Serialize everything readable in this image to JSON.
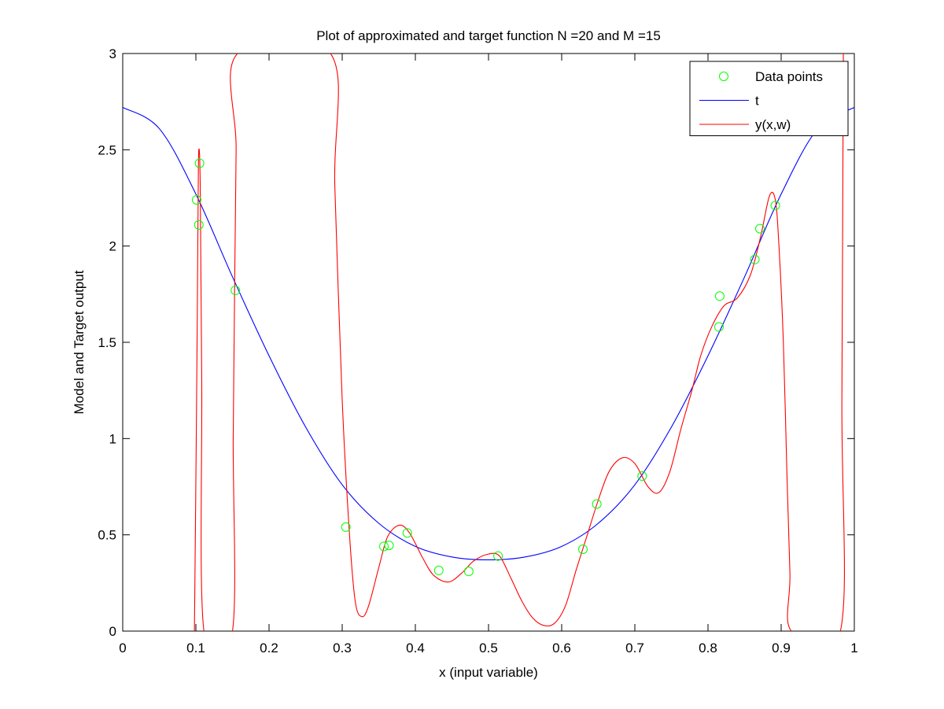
{
  "chart_data": {
    "type": "line",
    "title": "Plot of approximated and target function N =20 and M =15",
    "xlabel": "x (input variable)",
    "ylabel": "Model and Target output",
    "xlim": [
      0,
      1
    ],
    "ylim": [
      0,
      3
    ],
    "xticks": [
      0,
      0.1,
      0.2,
      0.3,
      0.4,
      0.5,
      0.6,
      0.7,
      0.8,
      0.9,
      1
    ],
    "xtick_labels": [
      "0",
      "0.1",
      "0.2",
      "0.3",
      "0.4",
      "0.5",
      "0.6",
      "0.7",
      "0.8",
      "0.9",
      "1"
    ],
    "yticks": [
      0,
      0.5,
      1,
      1.5,
      2,
      2.5,
      3
    ],
    "ytick_labels": [
      "0",
      "0.5",
      "1",
      "1.5",
      "2",
      "2.5",
      "3"
    ],
    "grid": false,
    "legend_position": "top-right",
    "series": [
      {
        "name": "Data points",
        "kind": "markers",
        "color": "#00ff00",
        "marker": "circle",
        "points": [
          [
            0.101,
            2.24
          ],
          [
            0.104,
            2.11
          ],
          [
            0.105,
            2.43
          ],
          [
            0.154,
            1.77
          ],
          [
            0.305,
            0.54
          ],
          [
            0.357,
            0.44
          ],
          [
            0.364,
            0.445
          ],
          [
            0.389,
            0.51
          ],
          [
            0.432,
            0.315
          ],
          [
            0.473,
            0.31
          ],
          [
            0.513,
            0.39
          ],
          [
            0.629,
            0.425
          ],
          [
            0.648,
            0.66
          ],
          [
            0.71,
            0.805
          ],
          [
            0.815,
            1.58
          ],
          [
            0.816,
            1.74
          ],
          [
            0.864,
            1.93
          ],
          [
            0.871,
            2.09
          ],
          [
            0.892,
            2.21
          ]
        ]
      },
      {
        "name": "t",
        "kind": "line",
        "color": "#0000ff",
        "points": [
          [
            0.0,
            2.72
          ],
          [
            0.05,
            2.61
          ],
          [
            0.1,
            2.27
          ],
          [
            0.15,
            1.84
          ],
          [
            0.2,
            1.43
          ],
          [
            0.25,
            1.06
          ],
          [
            0.3,
            0.76
          ],
          [
            0.35,
            0.56
          ],
          [
            0.4,
            0.44
          ],
          [
            0.45,
            0.385
          ],
          [
            0.5,
            0.37
          ],
          [
            0.55,
            0.385
          ],
          [
            0.6,
            0.44
          ],
          [
            0.65,
            0.56
          ],
          [
            0.7,
            0.76
          ],
          [
            0.75,
            1.06
          ],
          [
            0.8,
            1.43
          ],
          [
            0.85,
            1.84
          ],
          [
            0.9,
            2.27
          ],
          [
            0.95,
            2.61
          ],
          [
            1.0,
            2.72
          ]
        ]
      },
      {
        "name": "y(x,w)",
        "kind": "line",
        "color": "#ff0000",
        "points": [
          [
            0.098,
            0.0
          ],
          [
            0.101,
            1.2
          ],
          [
            0.103,
            2.2
          ],
          [
            0.104,
            2.5
          ],
          [
            0.106,
            2.3
          ],
          [
            0.108,
            1.3
          ],
          [
            0.111,
            0.0
          ],
          [
            0.15,
            0.0
          ],
          [
            0.151,
            1.0
          ],
          [
            0.153,
            1.8
          ],
          [
            0.155,
            2.5
          ],
          [
            0.157,
            3.0
          ],
          [
            0.284,
            3.0
          ],
          [
            0.29,
            2.3
          ],
          [
            0.3,
            1.2
          ],
          [
            0.31,
            0.5
          ],
          [
            0.318,
            0.15
          ],
          [
            0.327,
            0.075
          ],
          [
            0.336,
            0.13
          ],
          [
            0.35,
            0.33
          ],
          [
            0.362,
            0.49
          ],
          [
            0.378,
            0.55
          ],
          [
            0.392,
            0.51
          ],
          [
            0.41,
            0.38
          ],
          [
            0.425,
            0.29
          ],
          [
            0.445,
            0.255
          ],
          [
            0.463,
            0.3
          ],
          [
            0.48,
            0.365
          ],
          [
            0.5,
            0.4
          ],
          [
            0.515,
            0.39
          ],
          [
            0.53,
            0.28
          ],
          [
            0.545,
            0.16
          ],
          [
            0.56,
            0.07
          ],
          [
            0.575,
            0.03
          ],
          [
            0.59,
            0.04
          ],
          [
            0.605,
            0.13
          ],
          [
            0.62,
            0.32
          ],
          [
            0.635,
            0.5
          ],
          [
            0.65,
            0.68
          ],
          [
            0.665,
            0.83
          ],
          [
            0.683,
            0.9
          ],
          [
            0.7,
            0.87
          ],
          [
            0.718,
            0.75
          ],
          [
            0.733,
            0.72
          ],
          [
            0.748,
            0.83
          ],
          [
            0.763,
            1.05
          ],
          [
            0.778,
            1.25
          ],
          [
            0.79,
            1.43
          ],
          [
            0.805,
            1.58
          ],
          [
            0.822,
            1.69
          ],
          [
            0.84,
            1.73
          ],
          [
            0.858,
            1.85
          ],
          [
            0.872,
            2.05
          ],
          [
            0.884,
            2.26
          ],
          [
            0.892,
            2.24
          ],
          [
            0.897,
            2.0
          ],
          [
            0.903,
            1.5
          ],
          [
            0.908,
            0.8
          ],
          [
            0.912,
            0.3
          ],
          [
            0.914,
            0.0
          ],
          [
            0.981,
            0.0
          ],
          [
            0.983,
            1.2
          ],
          [
            0.985,
            3.0
          ]
        ]
      }
    ]
  },
  "legend": {
    "items": [
      {
        "label": "Data points",
        "color": "#00ff00",
        "kind": "markers"
      },
      {
        "label": "t",
        "color": "#0000ff",
        "kind": "line"
      },
      {
        "label": "y(x,w)",
        "color": "#ff0000",
        "kind": "line"
      }
    ]
  }
}
